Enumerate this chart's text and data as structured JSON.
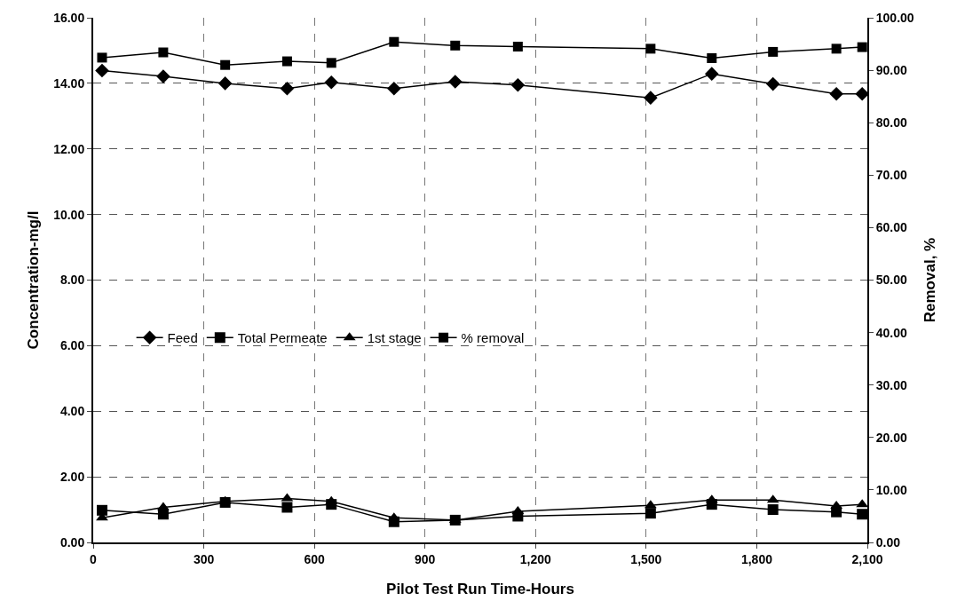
{
  "chart_data": {
    "type": "line",
    "xlabel": "Pilot Test Run Time-Hours",
    "ylabel": "Concentration-mg/l",
    "y2label": "Removal, %",
    "x": [
      24,
      190,
      358,
      526,
      646,
      816,
      982,
      1152,
      1512,
      1678,
      1844,
      2016,
      2086
    ],
    "series": [
      {
        "name": "Feed",
        "color": "#000000",
        "marker": "diamond",
        "values": [
          14.39,
          14.21,
          14.0,
          13.84,
          14.03,
          13.84,
          14.05,
          13.95,
          13.56,
          14.29,
          13.98,
          13.68,
          13.68
        ]
      },
      {
        "name": "Total Permeate",
        "color": "#000000",
        "marker": "square",
        "values": [
          0.98,
          0.86,
          1.22,
          1.07,
          1.16,
          0.63,
          0.68,
          0.8,
          0.89,
          1.16,
          1.0,
          0.93,
          0.86
        ]
      },
      {
        "name": "1st stage",
        "color": "#000000",
        "marker": "triangle",
        "values": [
          0.75,
          1.07,
          1.25,
          1.34,
          1.25,
          0.75,
          0.68,
          0.95,
          1.13,
          1.29,
          1.29,
          1.11,
          1.16
        ]
      },
      {
        "name": "% removal",
        "color": "#000000",
        "marker": "square",
        "axis": "y2",
        "values": [
          92.4,
          93.4,
          91.0,
          91.7,
          91.4,
          95.4,
          94.7,
          94.5,
          94.1,
          92.3,
          93.5,
          94.1,
          94.4
        ]
      }
    ],
    "xlim": [
      0,
      2100
    ],
    "xticks": [
      0,
      300,
      600,
      900,
      {
        "value": 1200,
        "label": "1,200"
      },
      {
        "value": 1500,
        "label": "1,500"
      },
      {
        "value": 1800,
        "label": "1,800"
      },
      {
        "value": 2100,
        "label": "2,100"
      }
    ],
    "ylim": [
      0,
      16
    ],
    "yticks": [
      {
        "value": 0,
        "label": "0.00"
      },
      {
        "value": 2,
        "label": "2.00"
      },
      {
        "value": 4,
        "label": "4.00"
      },
      {
        "value": 6,
        "label": "6.00"
      },
      {
        "value": 8,
        "label": "8.00"
      },
      {
        "value": 10,
        "label": "10.00"
      },
      {
        "value": 12,
        "label": "12.00"
      },
      {
        "value": 14,
        "label": "14.00"
      },
      {
        "value": 16,
        "label": "16.00"
      }
    ],
    "y2lim": [
      0,
      100
    ],
    "y2ticks": [
      {
        "value": 0,
        "label": "0.00"
      },
      {
        "value": 10,
        "label": "10.00"
      },
      {
        "value": 20,
        "label": "20.00"
      },
      {
        "value": 30,
        "label": "30.00"
      },
      {
        "value": 40,
        "label": "40.00"
      },
      {
        "value": 50,
        "label": "50.00"
      },
      {
        "value": 60,
        "label": "60.00"
      },
      {
        "value": 70,
        "label": "70.00"
      },
      {
        "value": 80,
        "label": "80.00"
      },
      {
        "value": 90,
        "label": "90.00"
      },
      {
        "value": 100,
        "label": "100.00"
      }
    ],
    "grid": true,
    "legend": "left",
    "line_style": "solid"
  }
}
